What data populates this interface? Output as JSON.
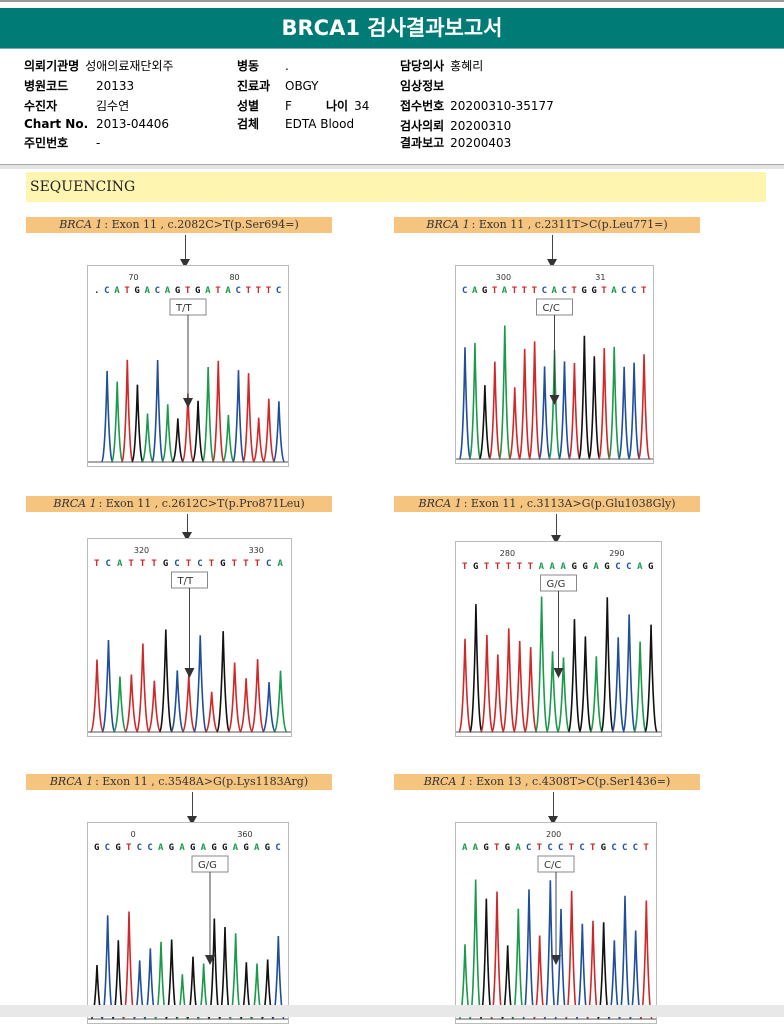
{
  "title": "BRCA1 검사결과보고서",
  "info": [
    {
      "label": "의뢰기관명",
      "value": "성애의료재단외주"
    },
    {
      "label": "병원코드",
      "value": "20133"
    },
    {
      "label": "수진자",
      "value": "김수연"
    },
    {
      "label": "Chart No.",
      "value": "2013-04406"
    },
    {
      "label": "주민번호",
      "value": "-"
    },
    {
      "label": "병동",
      "value": "."
    },
    {
      "label": "진료과",
      "value": "OBGY"
    },
    {
      "label": "성별",
      "value": "F"
    },
    {
      "label": "나이",
      "value": "34"
    },
    {
      "label": "검체",
      "value": "EDTA Blood"
    },
    {
      "label": "담당의사",
      "value": "홍혜리"
    },
    {
      "label": "임상정보",
      "value": ""
    },
    {
      "label": "접수번호",
      "value": "20200310-35177"
    },
    {
      "label": "검사의뢰",
      "value": "20200310"
    },
    {
      "label": "결과보고",
      "value": "20200403"
    }
  ],
  "section": "SEQUENCING",
  "panels": [
    {
      "gene": "BRCA 1",
      "variant": ": Exon 11 , c.2082C>T(p.Ser694=)",
      "genotype": "T/T",
      "seq": ".CATGACAGTGATACTTTC",
      "ticks": [
        "70",
        "80"
      ]
    },
    {
      "gene": "BRCA 1",
      "variant": ": Exon 11 , c.2311T>C(p.Leu771=)",
      "genotype": "C/C",
      "seq": "CAGTATTTCACTGGTACCT",
      "ticks": [
        "300",
        "31"
      ]
    },
    {
      "gene": "BRCA 1",
      "variant": ": Exon 11 , c.2612C>T(p.Pro871Leu)",
      "genotype": "T/T",
      "seq": "TCATTTGCTCTGTTTCA",
      "ticks": [
        "320",
        "330"
      ]
    },
    {
      "gene": "BRCA 1",
      "variant": ": Exon 11 , c.3113A>G(p.Glu1038Gly)",
      "genotype": "G/G",
      "seq": "TGTTTTTAAAGGAGCCAG",
      "ticks": [
        "280",
        "290"
      ]
    },
    {
      "gene": "BRCA 1",
      "variant": ": Exon 11 , c.3548A>G(p.Lys1183Arg)",
      "genotype": "G/G",
      "seq": "GCGTCCAGAGAGGAGAGC",
      "ticks": [
        "0",
        "360"
      ]
    },
    {
      "gene": "BRCA 1",
      "variant": ": Exon 13 , c.4308T>C(p.Ser1436=)",
      "genotype": "C/C",
      "seq": "AAGTGACTCCTCTGCCCT",
      "ticks": [
        "200"
      ]
    }
  ],
  "colors": {
    "header": "#007b76",
    "A": "#1a9a4a",
    "C": "#1f4e9c",
    "G": "#111111",
    "T": "#d02828"
  }
}
